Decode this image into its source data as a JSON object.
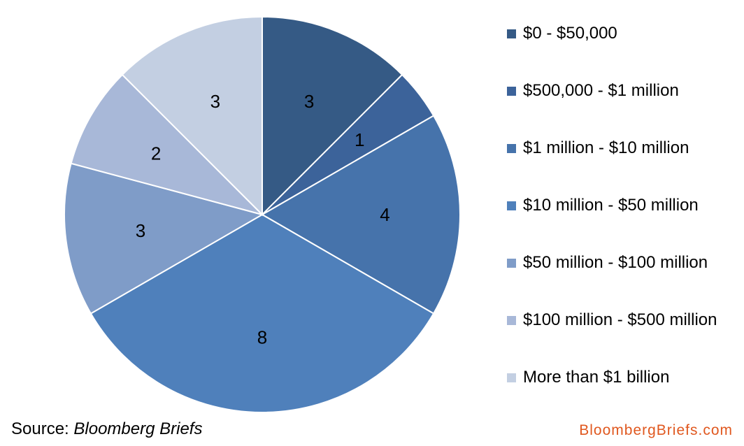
{
  "chart_data": {
    "type": "pie",
    "categories": [
      "$0 - $50,000",
      "$500,000 - $1 million",
      "$1 million - $10 million",
      "$10 million - $50 million",
      "$50 million - $100 million",
      "$100 million - $500 million",
      "More than $1 billion"
    ],
    "values": [
      3,
      1,
      4,
      8,
      3,
      2,
      3
    ],
    "colors": [
      "#355a85",
      "#3c639a",
      "#4673ab",
      "#4f80bb",
      "#7f9cc8",
      "#a8b8d8",
      "#c3cfe2"
    ],
    "legend_position": "right",
    "slice_labels": "values"
  },
  "footer": {
    "source_prefix": "Source: ",
    "source_publication": "Bloomberg Briefs",
    "brand": "BloombergBriefs.com",
    "brand_color": "#e0581f"
  }
}
